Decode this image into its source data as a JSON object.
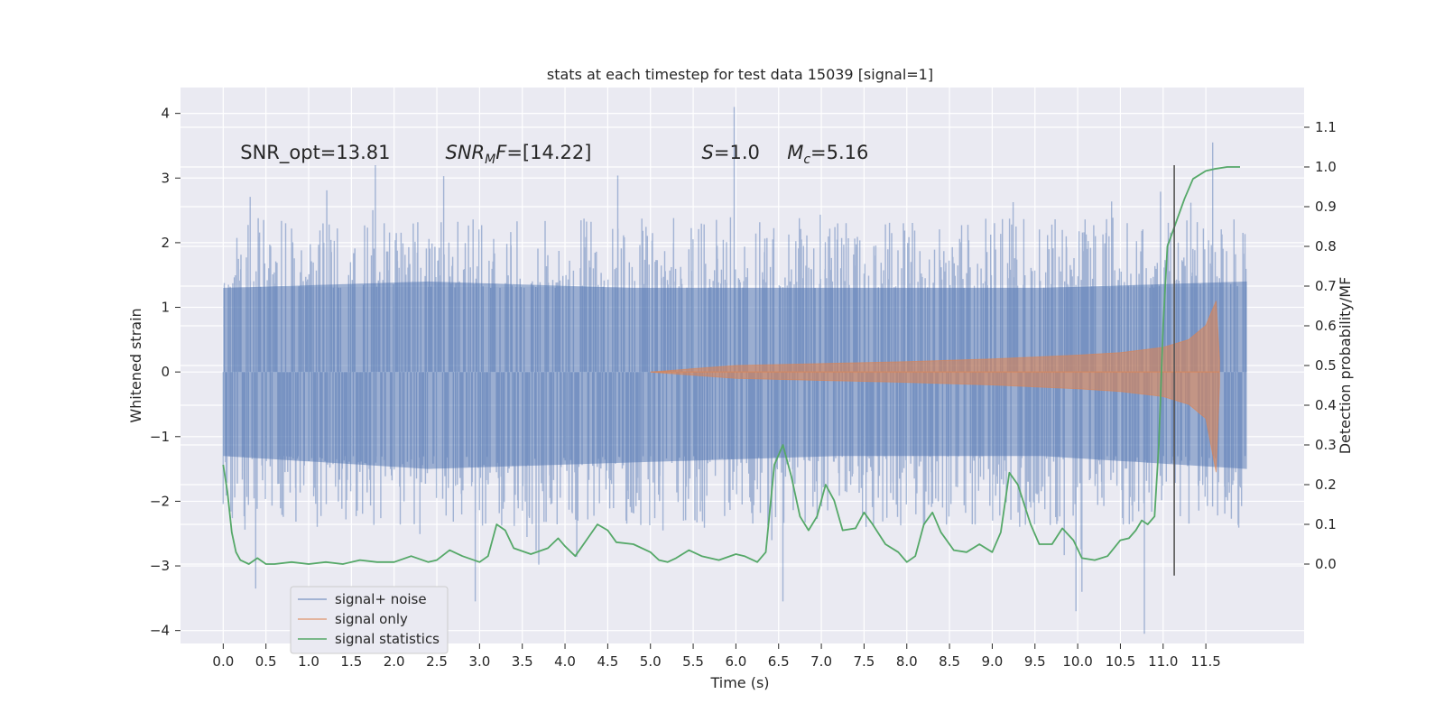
{
  "chart_data": {
    "type": "line",
    "title": "stats at each timestep for test data 15039 [signal=1]",
    "xlabel": "Time (s)",
    "ylabel": "Whitened strain",
    "ylabel_right": "Detection probability/MF",
    "xlim": [
      -0.5,
      12.65
    ],
    "ylim": [
      -4.2,
      4.4
    ],
    "ylim_right": [
      -0.2,
      1.2
    ],
    "xticks": [
      0.0,
      0.5,
      1.0,
      1.5,
      2.0,
      2.5,
      3.0,
      3.5,
      4.0,
      4.5,
      5.0,
      5.5,
      6.0,
      6.5,
      7.0,
      7.5,
      8.0,
      8.5,
      9.0,
      9.5,
      10.0,
      10.5,
      11.0,
      11.5
    ],
    "xtick_labels": [
      "0.0",
      "0.5",
      "1.0",
      "1.5",
      "2.0",
      "2.5",
      "3.0",
      "3.5",
      "4.0",
      "4.5",
      "5.0",
      "5.5",
      "6.0",
      "6.5",
      "7.0",
      "7.5",
      "8.0",
      "8.5",
      "9.0",
      "9.5",
      "10.0",
      "10.5",
      "11.0",
      "11.5"
    ],
    "yticks": [
      -4,
      -3,
      -2,
      -1,
      0,
      1,
      2,
      3,
      4
    ],
    "ytick_labels": [
      "−4",
      "−3",
      "−2",
      "−1",
      "0",
      "1",
      "2",
      "3",
      "4"
    ],
    "yticks_right": [
      0.0,
      0.1,
      0.2,
      0.3,
      0.4,
      0.5,
      0.6,
      0.7,
      0.8,
      0.9,
      1.0,
      1.1
    ],
    "ytick_labels_right": [
      "0.0",
      "0.1",
      "0.2",
      "0.3",
      "0.4",
      "0.5",
      "0.6",
      "0.7",
      "0.8",
      "0.9",
      "1.0",
      "1.1"
    ],
    "grid": true,
    "legend_position": "lower-left",
    "colors": {
      "background": "#eaeaf2",
      "grid": "#ffffff",
      "noise": "#4c72b0",
      "signal": "#dd8452",
      "stats": "#55a868",
      "marker": "#555555"
    },
    "annotations": [
      {
        "parts": [
          {
            "text": "SNR_opt=13.81",
            "italic": false
          }
        ],
        "x": 0.2,
        "y": 3.3
      },
      {
        "parts": [
          {
            "text": "SNR",
            "italic": true
          },
          {
            "text": "M",
            "italic": true,
            "sub": true
          },
          {
            "text": "F",
            "italic": true
          },
          {
            "text": "=[14.22]",
            "italic": false
          }
        ],
        "x": 2.6,
        "y": 3.3
      },
      {
        "parts": [
          {
            "text": "S",
            "italic": true
          },
          {
            "text": "=1.0",
            "italic": false
          }
        ],
        "x": 5.6,
        "y": 3.3
      },
      {
        "parts": [
          {
            "text": "M",
            "italic": true
          },
          {
            "text": "c",
            "italic": true,
            "sub": true
          },
          {
            "text": "=5.16",
            "italic": false
          }
        ],
        "x": 6.6,
        "y": 3.3
      }
    ],
    "vertical_line": {
      "x": 11.13,
      "y_range": [
        -3.15,
        3.2
      ]
    },
    "noise_series": {
      "name": "signal+ noise",
      "t_range": [
        0.0,
        11.98
      ],
      "band_min": [
        -1.3,
        -1.5,
        -1.4,
        -1.3,
        -1.3,
        -1.5
      ],
      "band_max": [
        1.3,
        1.4,
        1.3,
        1.3,
        1.3,
        1.4
      ],
      "typical_peak": 2.4,
      "extreme_peaks": [
        [
          1.78,
          3.2
        ],
        [
          5.98,
          4.1
        ],
        [
          11.58,
          3.55
        ],
        [
          2.95,
          -3.55
        ],
        [
          6.55,
          -3.55
        ],
        [
          9.98,
          -3.7
        ],
        [
          10.78,
          -4.05
        ],
        [
          0.38,
          -3.35
        ],
        [
          10.05,
          -3.4
        ]
      ]
    },
    "signal_series": {
      "name": "signal only",
      "t_start": 5.0,
      "t_merger": 11.62,
      "t_end": 11.66,
      "envelope": [
        [
          5.0,
          0.0
        ],
        [
          6.0,
          0.1
        ],
        [
          7.0,
          0.13
        ],
        [
          8.0,
          0.16
        ],
        [
          9.0,
          0.2
        ],
        [
          10.0,
          0.26
        ],
        [
          10.5,
          0.3
        ],
        [
          11.0,
          0.38
        ],
        [
          11.3,
          0.5
        ],
        [
          11.5,
          0.72
        ],
        [
          11.62,
          1.1
        ],
        [
          11.66,
          0.2
        ]
      ],
      "envelope_neg": [
        [
          5.0,
          0.0
        ],
        [
          6.0,
          -0.1
        ],
        [
          7.0,
          -0.13
        ],
        [
          8.0,
          -0.16
        ],
        [
          9.0,
          -0.2
        ],
        [
          10.0,
          -0.26
        ],
        [
          10.5,
          -0.3
        ],
        [
          11.0,
          -0.38
        ],
        [
          11.3,
          -0.5
        ],
        [
          11.5,
          -0.72
        ],
        [
          11.62,
          -1.55
        ],
        [
          11.66,
          -0.2
        ]
      ]
    },
    "stats_series": {
      "name": "signal statistics",
      "points": [
        [
          0.0,
          0.25
        ],
        [
          0.05,
          0.18
        ],
        [
          0.1,
          0.08
        ],
        [
          0.15,
          0.03
        ],
        [
          0.2,
          0.01
        ],
        [
          0.3,
          0.0
        ],
        [
          0.4,
          0.015
        ],
        [
          0.5,
          0.0
        ],
        [
          0.6,
          0.0
        ],
        [
          0.8,
          0.005
        ],
        [
          1.0,
          0.0
        ],
        [
          1.2,
          0.005
        ],
        [
          1.4,
          0.0
        ],
        [
          1.6,
          0.01
        ],
        [
          1.8,
          0.005
        ],
        [
          2.0,
          0.005
        ],
        [
          2.2,
          0.02
        ],
        [
          2.4,
          0.005
        ],
        [
          2.5,
          0.01
        ],
        [
          2.65,
          0.035
        ],
        [
          2.8,
          0.02
        ],
        [
          3.0,
          0.005
        ],
        [
          3.1,
          0.02
        ],
        [
          3.2,
          0.1
        ],
        [
          3.3,
          0.085
        ],
        [
          3.4,
          0.04
        ],
        [
          3.6,
          0.025
        ],
        [
          3.8,
          0.04
        ],
        [
          3.92,
          0.065
        ],
        [
          4.0,
          0.045
        ],
        [
          4.12,
          0.02
        ],
        [
          4.25,
          0.06
        ],
        [
          4.38,
          0.1
        ],
        [
          4.5,
          0.085
        ],
        [
          4.6,
          0.055
        ],
        [
          4.8,
          0.05
        ],
        [
          5.0,
          0.03
        ],
        [
          5.1,
          0.01
        ],
        [
          5.2,
          0.005
        ],
        [
          5.3,
          0.015
        ],
        [
          5.45,
          0.035
        ],
        [
          5.6,
          0.02
        ],
        [
          5.8,
          0.01
        ],
        [
          6.0,
          0.025
        ],
        [
          6.1,
          0.02
        ],
        [
          6.25,
          0.005
        ],
        [
          6.35,
          0.03
        ],
        [
          6.45,
          0.25
        ],
        [
          6.55,
          0.3
        ],
        [
          6.65,
          0.22
        ],
        [
          6.75,
          0.12
        ],
        [
          6.85,
          0.085
        ],
        [
          6.95,
          0.12
        ],
        [
          7.05,
          0.2
        ],
        [
          7.15,
          0.16
        ],
        [
          7.25,
          0.085
        ],
        [
          7.4,
          0.09
        ],
        [
          7.5,
          0.13
        ],
        [
          7.6,
          0.1
        ],
        [
          7.75,
          0.05
        ],
        [
          7.9,
          0.03
        ],
        [
          8.0,
          0.005
        ],
        [
          8.1,
          0.02
        ],
        [
          8.2,
          0.1
        ],
        [
          8.3,
          0.13
        ],
        [
          8.4,
          0.08
        ],
        [
          8.55,
          0.035
        ],
        [
          8.7,
          0.03
        ],
        [
          8.85,
          0.05
        ],
        [
          9.0,
          0.03
        ],
        [
          9.1,
          0.08
        ],
        [
          9.2,
          0.23
        ],
        [
          9.3,
          0.2
        ],
        [
          9.45,
          0.1
        ],
        [
          9.55,
          0.05
        ],
        [
          9.7,
          0.05
        ],
        [
          9.82,
          0.09
        ],
        [
          9.95,
          0.06
        ],
        [
          10.05,
          0.015
        ],
        [
          10.2,
          0.01
        ],
        [
          10.35,
          0.02
        ],
        [
          10.5,
          0.06
        ],
        [
          10.6,
          0.065
        ],
        [
          10.68,
          0.085
        ],
        [
          10.75,
          0.11
        ],
        [
          10.82,
          0.1
        ],
        [
          10.9,
          0.12
        ],
        [
          10.95,
          0.3
        ],
        [
          11.0,
          0.6
        ],
        [
          11.05,
          0.8
        ],
        [
          11.15,
          0.86
        ],
        [
          11.25,
          0.92
        ],
        [
          11.35,
          0.97
        ],
        [
          11.5,
          0.99
        ],
        [
          11.6,
          0.995
        ],
        [
          11.75,
          1.0
        ],
        [
          11.9,
          1.0
        ]
      ]
    }
  }
}
